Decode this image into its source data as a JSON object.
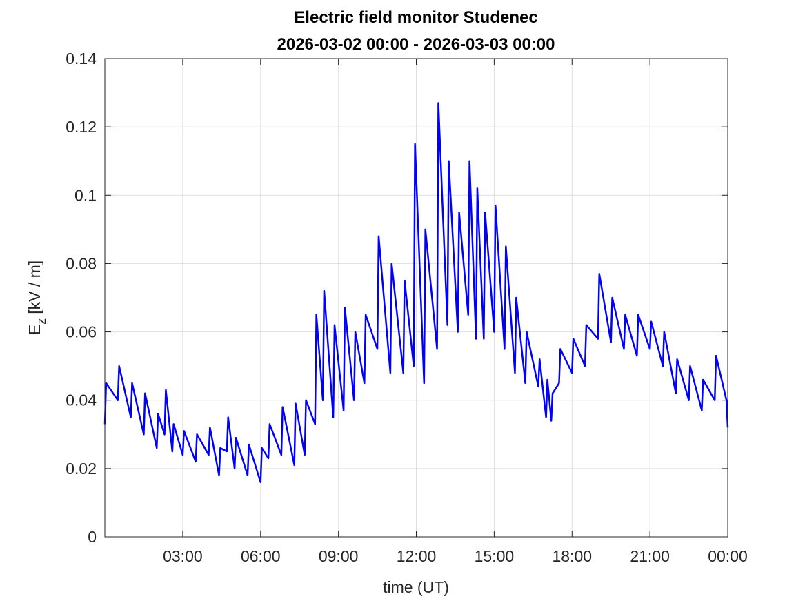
{
  "chart_data": {
    "type": "line",
    "title": "Electric field monitor Studenec",
    "subtitle": "2026-03-02 00:00 - 2026-03-03 00:00",
    "xlabel": "time (UT)",
    "ylabel": [
      "E",
      "z",
      "[kV / m]"
    ],
    "xlim": [
      0,
      24
    ],
    "xticks": [
      {
        "value": 3,
        "label": "03:00"
      },
      {
        "value": 6,
        "label": "06:00"
      },
      {
        "value": 9,
        "label": "09:00"
      },
      {
        "value": 12,
        "label": "12:00"
      },
      {
        "value": 15,
        "label": "15:00"
      },
      {
        "value": 18,
        "label": "18:00"
      },
      {
        "value": 21,
        "label": "21:00"
      },
      {
        "value": 24,
        "label": "00:00"
      }
    ],
    "ylim": [
      0,
      0.14
    ],
    "yticks": [
      0,
      0.02,
      0.04,
      0.06,
      0.08,
      0.1,
      0.12,
      0.14
    ],
    "grid": true,
    "series": [
      {
        "color": "#0000ff",
        "x": [
          0,
          0.05,
          0.5,
          0.55,
          1,
          1.05,
          1.5,
          1.55,
          2,
          2.05,
          2.3,
          2.35,
          2.6,
          2.65,
          3,
          3.05,
          3.5,
          3.55,
          4,
          4.05,
          4.4,
          4.45,
          4.7,
          4.75,
          5,
          5.05,
          5.5,
          5.55,
          6,
          6.05,
          6.3,
          6.35,
          6.8,
          6.85,
          7.3,
          7.35,
          7.7,
          7.75,
          8.1,
          8.15,
          8.4,
          8.45,
          8.8,
          8.85,
          9.2,
          9.25,
          9.6,
          9.65,
          10,
          10.05,
          10.5,
          10.55,
          11,
          11.05,
          11.5,
          11.55,
          11.9,
          11.95,
          12.3,
          12.35,
          12.8,
          12.85,
          13.2,
          13.25,
          13.6,
          13.65,
          14,
          14.05,
          14.3,
          14.35,
          14.6,
          14.65,
          15,
          15.05,
          15.4,
          15.45,
          15.8,
          15.85,
          16.2,
          16.25,
          16.7,
          16.75,
          17,
          17.05,
          17.2,
          17.25,
          17.5,
          17.55,
          18,
          18.05,
          18.5,
          18.55,
          19,
          19.05,
          19.5,
          19.55,
          20,
          20.05,
          20.5,
          20.55,
          21,
          21.05,
          21.5,
          21.55,
          22,
          22.05,
          22.5,
          22.55,
          23,
          23.05,
          23.5,
          23.55,
          23.95,
          24
        ],
        "values": [
          0.033,
          0.045,
          0.04,
          0.05,
          0.035,
          0.045,
          0.03,
          0.042,
          0.026,
          0.036,
          0.03,
          0.043,
          0.025,
          0.033,
          0.024,
          0.031,
          0.022,
          0.03,
          0.024,
          0.032,
          0.018,
          0.026,
          0.025,
          0.035,
          0.02,
          0.029,
          0.018,
          0.027,
          0.016,
          0.026,
          0.023,
          0.033,
          0.024,
          0.038,
          0.021,
          0.039,
          0.024,
          0.04,
          0.033,
          0.065,
          0.04,
          0.072,
          0.035,
          0.062,
          0.037,
          0.067,
          0.04,
          0.06,
          0.045,
          0.065,
          0.055,
          0.088,
          0.048,
          0.08,
          0.048,
          0.075,
          0.05,
          0.115,
          0.045,
          0.09,
          0.055,
          0.127,
          0.062,
          0.11,
          0.06,
          0.095,
          0.065,
          0.11,
          0.058,
          0.102,
          0.058,
          0.095,
          0.06,
          0.097,
          0.055,
          0.085,
          0.048,
          0.07,
          0.045,
          0.06,
          0.044,
          0.052,
          0.035,
          0.046,
          0.034,
          0.042,
          0.045,
          0.055,
          0.048,
          0.058,
          0.05,
          0.062,
          0.058,
          0.077,
          0.057,
          0.07,
          0.055,
          0.065,
          0.053,
          0.065,
          0.055,
          0.063,
          0.05,
          0.06,
          0.042,
          0.052,
          0.04,
          0.05,
          0.037,
          0.046,
          0.04,
          0.053,
          0.04,
          0.032
        ]
      }
    ]
  }
}
